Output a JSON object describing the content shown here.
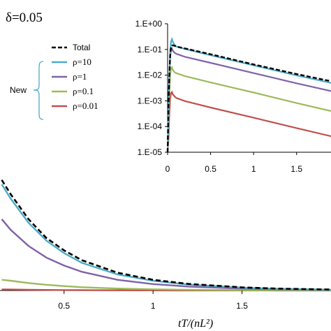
{
  "delta_label": "δ=0.05",
  "xlabel": "tT/(nL²)",
  "group_label": "New",
  "legend": [
    {
      "name": "Total",
      "color": "#000000",
      "dash": true
    },
    {
      "name": "ρ=10",
      "color": "#4bacc6"
    },
    {
      "name": "ρ=1",
      "color": "#7f62a8"
    },
    {
      "name": "ρ=0.1",
      "color": "#9bbb59"
    },
    {
      "name": "ρ=0.01",
      "color": "#c0504d"
    }
  ],
  "chart_data": [
    {
      "type": "line",
      "panel": "main",
      "xlabel": "tT/(nL²)",
      "xlim": [
        0.14,
        2.0
      ],
      "ylim": [
        0,
        1.3
      ],
      "xticks": [
        "0.5",
        "1",
        "1.5"
      ],
      "x": [
        0.15,
        0.2,
        0.3,
        0.4,
        0.5,
        0.6,
        0.8,
        1.0,
        1.2,
        1.5,
        1.7,
        2.0
      ],
      "series": [
        {
          "name": "Total",
          "color": "#000000",
          "dash": true,
          "values": [
            1.24,
            1.08,
            0.8,
            0.59,
            0.45,
            0.34,
            0.2,
            0.12,
            0.074,
            0.035,
            0.021,
            0.011
          ]
        },
        {
          "name": "ρ=10",
          "color": "#4bacc6",
          "values": [
            1.19,
            1.03,
            0.76,
            0.56,
            0.42,
            0.31,
            0.18,
            0.11,
            0.066,
            0.031,
            0.019,
            0.0095
          ]
        },
        {
          "name": "ρ=1",
          "color": "#7f62a8",
          "values": [
            0.8,
            0.68,
            0.5,
            0.37,
            0.28,
            0.21,
            0.12,
            0.072,
            0.044,
            0.021,
            0.013,
            0.0065
          ]
        },
        {
          "name": "ρ=0.1",
          "color": "#9bbb59",
          "values": [
            0.12,
            0.11,
            0.084,
            0.064,
            0.049,
            0.037,
            0.022,
            0.013,
            0.008,
            0.004,
            0.0025,
            0.0012
          ]
        },
        {
          "name": "ρ=0.01",
          "color": "#c0504d",
          "values": [
            0.012,
            0.011,
            0.0085,
            0.0065,
            0.005,
            0.0038,
            0.0022,
            0.0013,
            0.0008,
            0.0004,
            0.00025,
            0.00012
          ]
        }
      ]
    },
    {
      "type": "line",
      "panel": "inset",
      "log_y": true,
      "xlim": [
        0,
        1.9
      ],
      "ylim": [
        1e-05,
        1
      ],
      "xticks": [
        "0",
        "0.5",
        "1",
        "1.5"
      ],
      "yticks": [
        "1.E+00",
        "1.E-01",
        "1.E-02",
        "1.E-03",
        "1.E-04",
        "1.E-05"
      ],
      "x": [
        0.0,
        0.01,
        0.02,
        0.03,
        0.04,
        0.05,
        0.06,
        0.08,
        0.1,
        0.2,
        0.5,
        1.0,
        1.5,
        1.9
      ],
      "series": [
        {
          "name": "Total",
          "color": "#000000",
          "dash": true,
          "values": [
            1e-05,
            0.0005,
            0.01,
            0.06,
            0.12,
            0.14,
            0.145,
            0.14,
            0.13,
            0.11,
            0.065,
            0.026,
            0.011,
            0.0058
          ]
        },
        {
          "name": "ρ=10",
          "color": "#4bacc6",
          "values": [
            1e-05,
            0.0005,
            0.01,
            0.08,
            0.2,
            0.25,
            0.2,
            0.15,
            0.13,
            0.105,
            0.06,
            0.024,
            0.0098,
            0.005
          ]
        },
        {
          "name": "ρ=1",
          "color": "#7f62a8",
          "values": [
            1e-05,
            0.0003,
            0.008,
            0.05,
            0.1,
            0.11,
            0.09,
            0.075,
            0.068,
            0.052,
            0.03,
            0.012,
            0.0048,
            0.0024
          ]
        },
        {
          "name": "ρ=0.1",
          "color": "#9bbb59",
          "values": [
            1e-05,
            0.0001,
            0.002,
            0.01,
            0.018,
            0.02,
            0.016,
            0.013,
            0.012,
            0.0092,
            0.0052,
            0.0021,
            0.00082,
            0.0004
          ]
        },
        {
          "name": "ρ=0.01",
          "color": "#c0504d",
          "values": [
            1e-05,
            3e-05,
            0.0003,
            0.0012,
            0.002,
            0.0022,
            0.0018,
            0.0015,
            0.0013,
            0.00098,
            0.00055,
            0.00022,
            8.7e-05,
            4.2e-05
          ]
        }
      ]
    }
  ]
}
